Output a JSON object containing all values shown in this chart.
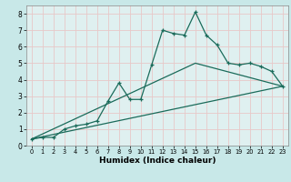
{
  "xlabel": "Humidex (Indice chaleur)",
  "bg_color": "#c8e8e8",
  "plot_bg_color": "#dff0f0",
  "grid_color": "#e8c8c8",
  "line_color": "#1a6b5a",
  "line1_x": [
    0,
    1,
    2,
    3,
    4,
    5,
    6,
    7,
    8,
    9,
    10,
    11,
    12,
    13,
    14,
    15,
    16,
    17,
    18,
    19,
    20,
    21,
    22,
    23
  ],
  "line1_y": [
    0.4,
    0.5,
    0.5,
    1.0,
    1.2,
    1.3,
    1.5,
    2.7,
    3.8,
    2.8,
    2.8,
    4.9,
    7.0,
    6.8,
    6.7,
    8.1,
    6.7,
    6.1,
    5.0,
    4.9,
    5.0,
    4.8,
    4.5,
    3.6
  ],
  "line2_x": [
    0,
    23
  ],
  "line2_y": [
    0.4,
    3.6
  ],
  "line3_x": [
    0,
    15,
    23
  ],
  "line3_y": [
    0.4,
    5.0,
    3.6
  ],
  "xlim": [
    -0.5,
    23.5
  ],
  "ylim": [
    0,
    8.5
  ],
  "xticks": [
    0,
    1,
    2,
    3,
    4,
    5,
    6,
    7,
    8,
    9,
    10,
    11,
    12,
    13,
    14,
    15,
    16,
    17,
    18,
    19,
    20,
    21,
    22,
    23
  ],
  "yticks": [
    0,
    1,
    2,
    3,
    4,
    5,
    6,
    7,
    8
  ]
}
